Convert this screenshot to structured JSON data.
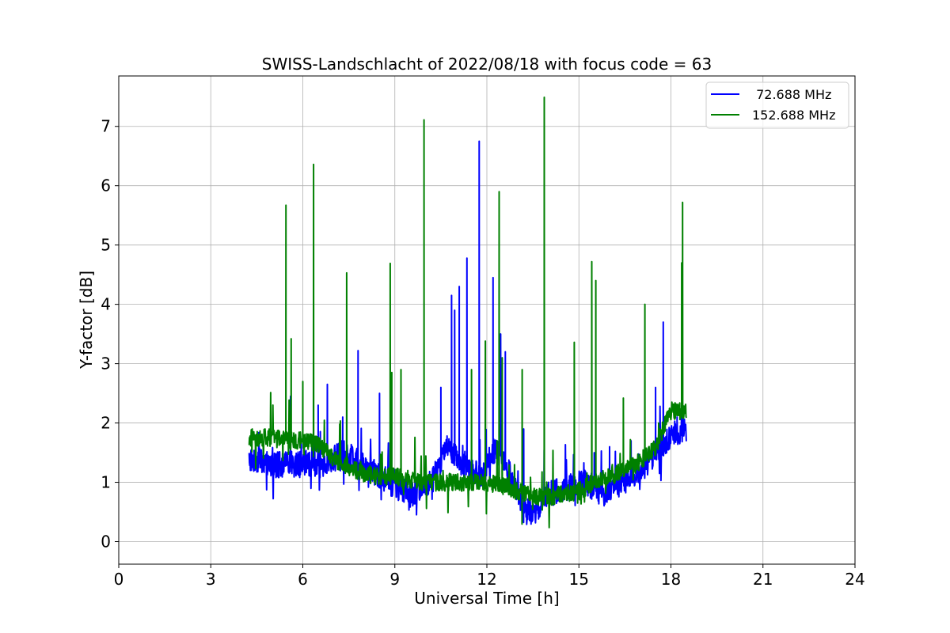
{
  "chart_data": {
    "type": "line",
    "title": "SWISS-Landschlacht of 2022/08/18 with focus code = 63",
    "xlabel": "Universal Time [h]",
    "ylabel": "Y-factor [dB]",
    "xlim": [
      0,
      24
    ],
    "ylim": [
      -0.38,
      7.85
    ],
    "xticks": [
      0,
      3,
      6,
      9,
      12,
      15,
      18,
      21,
      24
    ],
    "xtick_labels": [
      "0",
      "3",
      "6",
      "9",
      "12",
      "15",
      "18",
      "21",
      "24"
    ],
    "yticks": [
      0,
      1,
      2,
      3,
      4,
      5,
      6,
      7
    ],
    "ytick_labels": [
      "0",
      "1",
      "2",
      "3",
      "4",
      "5",
      "6",
      "7"
    ],
    "grid": true,
    "legend_position": "top-right",
    "series": [
      {
        "name": " 72.688 MHz",
        "color": "#0000ff",
        "x_range": [
          4.25,
          18.5
        ],
        "baseline": [
          [
            4.25,
            1.4
          ],
          [
            5.0,
            1.3
          ],
          [
            6.0,
            1.3
          ],
          [
            6.7,
            1.3
          ],
          [
            7.3,
            1.5
          ],
          [
            8.0,
            1.3
          ],
          [
            8.8,
            1.0
          ],
          [
            9.5,
            0.8
          ],
          [
            10.2,
            1.0
          ],
          [
            10.7,
            1.6
          ],
          [
            11.2,
            1.3
          ],
          [
            11.8,
            1.1
          ],
          [
            12.3,
            1.6
          ],
          [
            12.7,
            1.2
          ],
          [
            13.2,
            0.5
          ],
          [
            13.6,
            0.5
          ],
          [
            14.0,
            0.8
          ],
          [
            14.6,
            0.9
          ],
          [
            15.2,
            1.0
          ],
          [
            15.8,
            0.8
          ],
          [
            16.4,
            1.0
          ],
          [
            17.0,
            1.2
          ],
          [
            17.5,
            1.5
          ],
          [
            18.0,
            1.8
          ],
          [
            18.5,
            1.9
          ]
        ],
        "spikes": [
          [
            5.6,
            2.45
          ],
          [
            6.5,
            2.3
          ],
          [
            6.8,
            2.65
          ],
          [
            7.3,
            2.1
          ],
          [
            7.8,
            3.22
          ],
          [
            8.5,
            2.5
          ],
          [
            10.5,
            2.6
          ],
          [
            10.85,
            4.15
          ],
          [
            10.95,
            3.9
          ],
          [
            11.1,
            4.3
          ],
          [
            11.35,
            4.78
          ],
          [
            11.75,
            6.75
          ],
          [
            12.2,
            4.45
          ],
          [
            12.45,
            3.5
          ],
          [
            12.6,
            3.2
          ],
          [
            13.2,
            1.9
          ],
          [
            15.5,
            1.5
          ],
          [
            16.0,
            1.6
          ],
          [
            16.7,
            1.7
          ],
          [
            17.5,
            2.6
          ],
          [
            17.75,
            3.7
          ],
          [
            18.2,
            2.1
          ]
        ],
        "noise": 0.22
      },
      {
        "name": "152.688 MHz",
        "color": "#008000",
        "x_range": [
          4.25,
          18.5
        ],
        "baseline": [
          [
            4.25,
            1.75
          ],
          [
            5.0,
            1.75
          ],
          [
            5.5,
            1.7
          ],
          [
            6.0,
            1.7
          ],
          [
            6.5,
            1.65
          ],
          [
            7.0,
            1.4
          ],
          [
            7.5,
            1.25
          ],
          [
            8.0,
            1.15
          ],
          [
            8.5,
            1.1
          ],
          [
            9.0,
            1.1
          ],
          [
            9.5,
            1.05
          ],
          [
            10.0,
            1.0
          ],
          [
            10.5,
            1.0
          ],
          [
            11.0,
            1.0
          ],
          [
            11.5,
            1.0
          ],
          [
            12.0,
            1.0
          ],
          [
            12.5,
            0.95
          ],
          [
            13.0,
            0.85
          ],
          [
            13.5,
            0.75
          ],
          [
            14.0,
            0.75
          ],
          [
            14.5,
            0.8
          ],
          [
            15.0,
            0.85
          ],
          [
            15.5,
            1.0
          ],
          [
            16.0,
            1.1
          ],
          [
            16.5,
            1.2
          ],
          [
            17.0,
            1.35
          ],
          [
            17.5,
            1.6
          ],
          [
            18.0,
            2.2
          ],
          [
            18.5,
            2.2
          ]
        ],
        "spikes": [
          [
            5.45,
            5.67
          ],
          [
            5.62,
            3.42
          ],
          [
            6.0,
            2.7
          ],
          [
            6.35,
            6.36
          ],
          [
            7.43,
            4.53
          ],
          [
            8.85,
            4.69
          ],
          [
            8.9,
            2.85
          ],
          [
            9.2,
            2.9
          ],
          [
            9.95,
            7.11
          ],
          [
            11.5,
            2.9
          ],
          [
            11.95,
            3.38
          ],
          [
            12.4,
            5.9
          ],
          [
            12.5,
            3.1
          ],
          [
            13.15,
            2.9
          ],
          [
            13.87,
            7.49
          ],
          [
            14.85,
            3.36
          ],
          [
            15.42,
            4.72
          ],
          [
            15.55,
            4.4
          ],
          [
            16.45,
            2.42
          ],
          [
            17.15,
            4.0
          ],
          [
            17.6,
            2.0
          ],
          [
            18.35,
            4.7
          ],
          [
            18.38,
            5.72
          ]
        ],
        "noise": 0.15
      }
    ]
  }
}
